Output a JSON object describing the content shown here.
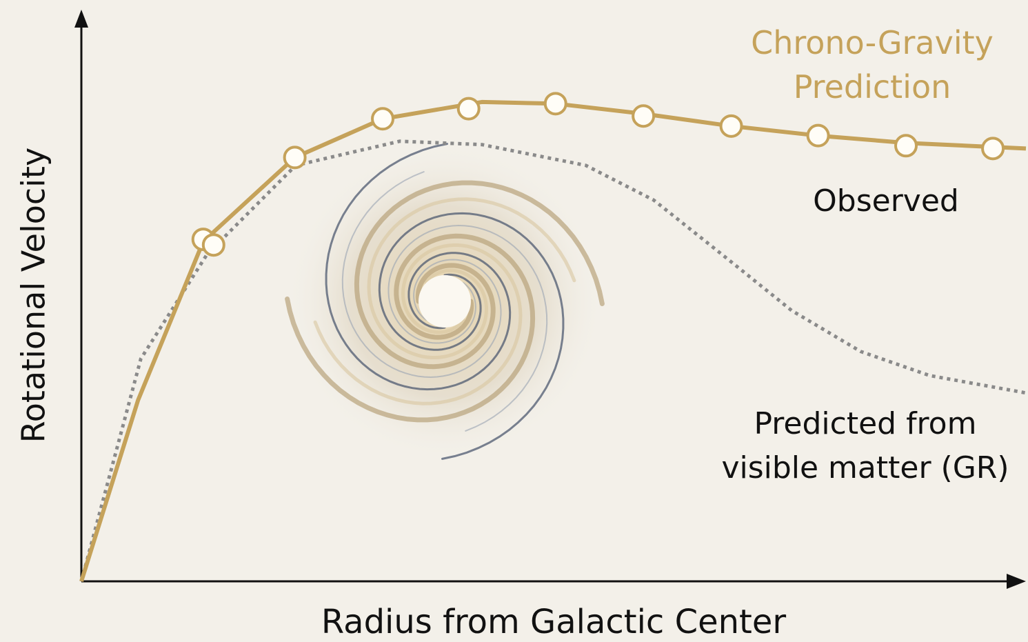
{
  "chart_data": {
    "type": "line",
    "x_label": "Radius from Galactic Center",
    "y_label": "Rotational Velocity",
    "xlim": [
      0,
      100
    ],
    "ylim": [
      0,
      100
    ],
    "grid": false,
    "series": [
      {
        "name": "Chrono-Gravity Prediction",
        "color": "#c5a25a",
        "style": "line",
        "x": [
          0,
          6,
          12.9,
          22.6,
          31.9,
          42.4,
          50.2,
          59.5,
          68.8,
          78,
          87.3,
          100
        ],
        "values": [
          0,
          32.3,
          60.6,
          75.6,
          82.5,
          85.5,
          85.2,
          83.4,
          81.2,
          79.5,
          78.2,
          77.2
        ]
      },
      {
        "name": "Observed",
        "color": "#c5a25a",
        "style": "markers",
        "x": [
          12.9,
          14,
          22.6,
          31.9,
          41,
          50.2,
          59.5,
          68.8,
          78,
          87.3,
          96.5
        ],
        "values": [
          61,
          60,
          75.6,
          82.5,
          84.3,
          85.2,
          83,
          81.2,
          79.5,
          77.7,
          77.2
        ]
      },
      {
        "name": "Predicted from visible matter (GR)",
        "color": "#8a8a8a",
        "style": "dotted",
        "x": [
          0,
          6.3,
          13.3,
          22.7,
          33.7,
          42.4,
          53.4,
          60.6,
          67.9,
          75.2,
          82.5,
          89.8,
          100
        ],
        "values": [
          0,
          39.7,
          58.3,
          74.2,
          78.5,
          77.9,
          74.2,
          68,
          58.2,
          48.3,
          41,
          36.7,
          33.6
        ]
      }
    ]
  }
}
